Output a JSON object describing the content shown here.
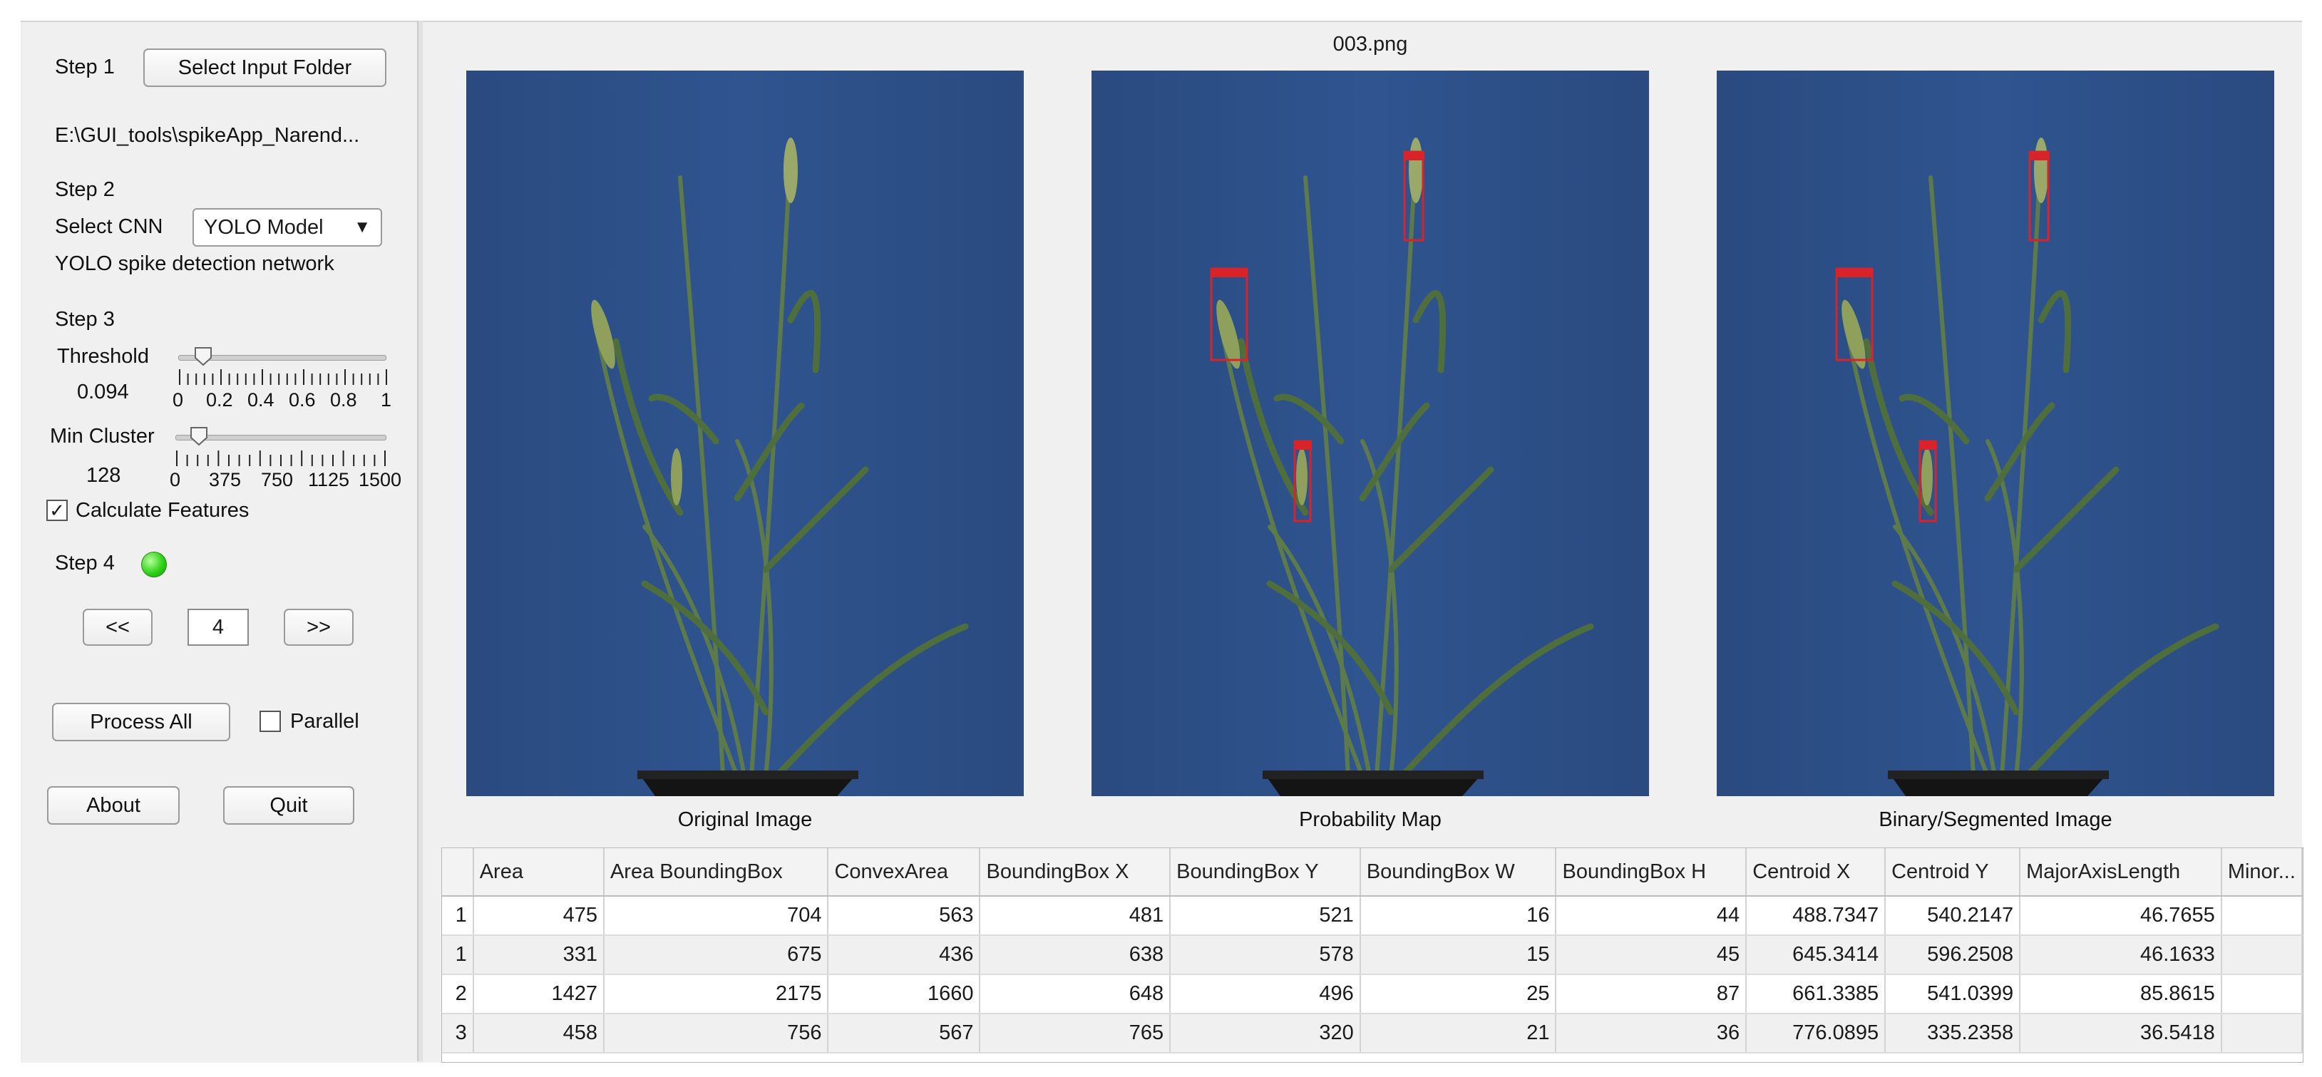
{
  "step1": {
    "label": "Step 1",
    "button": "Select Input Folder",
    "path": "E:\\GUI_tools\\spikeApp_Narend..."
  },
  "step2": {
    "label": "Step 2",
    "cnn_label": "Select CNN",
    "cnn_value": "YOLO Model",
    "description": "YOLO spike detection network"
  },
  "step3": {
    "label": "Step 3",
    "threshold": {
      "label": "Threshold",
      "value": "0.094",
      "level": 0.094,
      "ticks": [
        "0",
        "0.2",
        "0.4",
        "0.6",
        "0.8",
        "1"
      ]
    },
    "min_cluster": {
      "label": "Min Cluster",
      "value": "128",
      "level": 128,
      "ticks": [
        "0",
        "375",
        "750",
        "1125",
        "1500"
      ]
    },
    "calc_features": {
      "label": "Calculate Features",
      "checked": true
    }
  },
  "step4": {
    "label": "Step 4",
    "status_color": "#2fd21b",
    "prev": "<<",
    "page": "4",
    "next": ">>"
  },
  "actions": {
    "process_all": "Process All",
    "parallel": "Parallel",
    "about": "About",
    "quit": "Quit"
  },
  "images": {
    "title": "003.png",
    "captions": [
      "Original Image",
      "Probability Map",
      "Binary/Segmented Image"
    ]
  },
  "table": {
    "columns": [
      "Area",
      "Area BoundingBox",
      "ConvexArea",
      "BoundingBox X",
      "BoundingBox Y",
      "BoundingBox W",
      "BoundingBox H",
      "Centroid X",
      "Centroid Y",
      "MajorAxisLength",
      "Minor..."
    ],
    "rows": [
      {
        "id": "1",
        "cells": [
          "475",
          "704",
          "563",
          "481",
          "521",
          "16",
          "44",
          "488.7347",
          "540.2147",
          "46.7655",
          ""
        ]
      },
      {
        "id": "1",
        "cells": [
          "331",
          "675",
          "436",
          "638",
          "578",
          "15",
          "45",
          "645.3414",
          "596.2508",
          "46.1633",
          ""
        ]
      },
      {
        "id": "2",
        "cells": [
          "1427",
          "2175",
          "1660",
          "648",
          "496",
          "25",
          "87",
          "661.3385",
          "541.0399",
          "85.8615",
          ""
        ]
      },
      {
        "id": "3",
        "cells": [
          "458",
          "756",
          "567",
          "765",
          "320",
          "21",
          "36",
          "776.0895",
          "335.2358",
          "36.5418",
          ""
        ]
      }
    ]
  },
  "colors": {
    "plot_background": "#2a4d86",
    "detection_box": "#d8232a"
  }
}
